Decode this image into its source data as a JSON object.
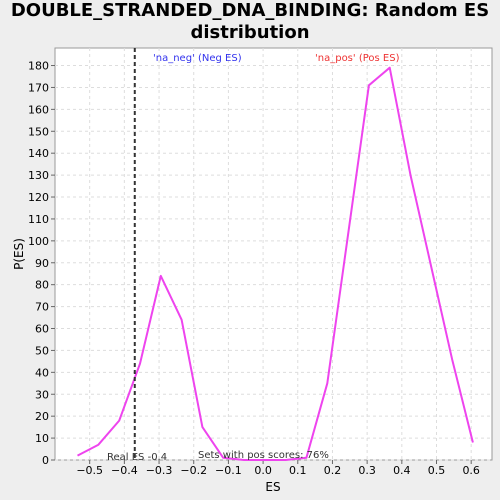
{
  "chart_data": {
    "type": "line",
    "title_line1": "DOUBLE_STRANDED_DNA_BINDING: Random ES",
    "title_line2": "distribution",
    "xlabel": "ES",
    "ylabel": "P(ES)",
    "xlim": [
      -0.6,
      0.66
    ],
    "ylim": [
      0,
      188
    ],
    "x_ticks": [
      -0.5,
      -0.4,
      -0.3,
      -0.2,
      -0.1,
      0.0,
      0.1,
      0.2,
      0.3,
      0.4,
      0.5,
      0.6
    ],
    "x_tick_labels": [
      "−0.5",
      "−0.4",
      "−0.3",
      "−0.2",
      "−0.1",
      "0.0",
      "0.1",
      "0.2",
      "0.3",
      "0.4",
      "0.5",
      "0.6"
    ],
    "y_ticks": [
      0,
      10,
      20,
      30,
      40,
      50,
      60,
      70,
      80,
      90,
      100,
      110,
      120,
      130,
      140,
      150,
      160,
      170,
      180
    ],
    "grid": true,
    "series": [
      {
        "color": "#ee44ee",
        "x": [
          -0.535,
          -0.475,
          -0.415,
          -0.355,
          -0.295,
          -0.235,
          -0.175,
          -0.115,
          -0.055,
          0.005,
          0.065,
          0.125,
          0.185,
          0.245,
          0.305,
          0.365,
          0.425,
          0.485,
          0.545,
          0.605
        ],
        "y": [
          2,
          7,
          18,
          44,
          84,
          64,
          15,
          1,
          0,
          0,
          0,
          1,
          35,
          103,
          171,
          179,
          130,
          88,
          46,
          8
        ]
      }
    ],
    "real_es": -0.37,
    "annotations": {
      "neg_label": "'na_neg' (Neg ES)",
      "pos_label": "'na_pos' (Pos ES)",
      "real_es_label": "Real ES -0.4",
      "pos_scores_label": "Sets with pos scores: 76%"
    },
    "colors": {
      "neg": "#3333ee",
      "pos": "#ee3333",
      "line": "#ee44ee",
      "grid": "#dddddd",
      "real_es_line": "#333333"
    }
  }
}
